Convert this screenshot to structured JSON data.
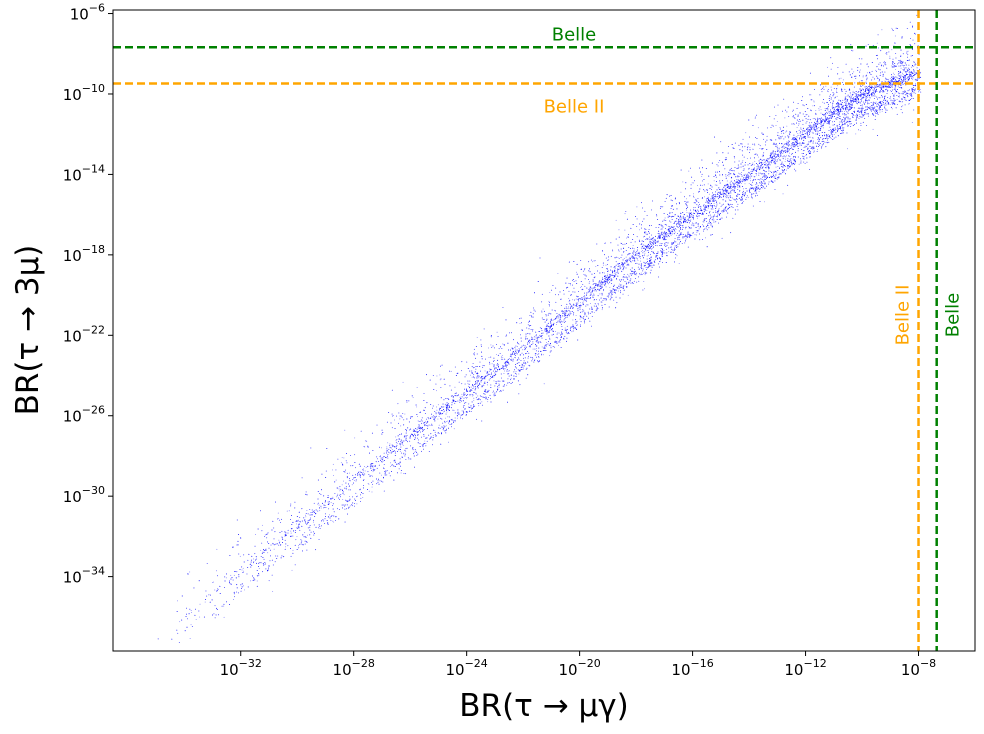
{
  "chart_data": {
    "type": "scatter",
    "xlabel": "BR(τ → μγ)",
    "ylabel": "BR(τ → 3μ)",
    "x_scale": "log",
    "y_scale": "log",
    "xlim": [
      3e-37,
      1e-06
    ],
    "ylim": [
      2e-38,
      1.5e-06
    ],
    "x_ticks": [
      {
        "value": 1e-32,
        "base": "10",
        "exp": "−32"
      },
      {
        "value": 1e-28,
        "base": "10",
        "exp": "−28"
      },
      {
        "value": 1e-24,
        "base": "10",
        "exp": "−24"
      },
      {
        "value": 1e-20,
        "base": "10",
        "exp": "−20"
      },
      {
        "value": 1e-16,
        "base": "10",
        "exp": "−16"
      },
      {
        "value": 1e-12,
        "base": "10",
        "exp": "−12"
      },
      {
        "value": 1e-08,
        "base": "10",
        "exp": "−8"
      }
    ],
    "y_ticks": [
      {
        "value": 1e-06,
        "base": "10",
        "exp": "−6"
      },
      {
        "value": 1e-10,
        "base": "10",
        "exp": "−10"
      },
      {
        "value": 1e-14,
        "base": "10",
        "exp": "−14"
      },
      {
        "value": 1e-18,
        "base": "10",
        "exp": "−18"
      },
      {
        "value": 1e-22,
        "base": "10",
        "exp": "−22"
      },
      {
        "value": 1e-26,
        "base": "10",
        "exp": "−26"
      },
      {
        "value": 1e-30,
        "base": "10",
        "exp": "−30"
      },
      {
        "value": 1e-34,
        "base": "10",
        "exp": "−34"
      }
    ],
    "grid": false,
    "series": [
      {
        "color": "#0000ff",
        "marker_size": "tiny",
        "trend_points": [
          {
            "x": 1e-34,
            "y": 1e-36
          },
          {
            "x": 1e-30,
            "y": 3e-32
          },
          {
            "x": 1e-26,
            "y": 1e-27
          },
          {
            "x": 1e-22,
            "y": 2e-23
          },
          {
            "x": 1e-18,
            "y": 1e-18
          },
          {
            "x": 1e-14,
            "y": 1e-14
          },
          {
            "x": 1e-12,
            "y": 1e-12
          },
          {
            "x": 1e-10,
            "y": 1e-10
          },
          {
            "x": 1e-08,
            "y": 1e-09
          }
        ],
        "point_count": 14000
      }
    ],
    "reference_lines": [
      {
        "orientation": "horizontal",
        "value": 2.1e-08,
        "label": "Belle",
        "color": "#008000",
        "label_position": "above"
      },
      {
        "orientation": "horizontal",
        "value": 3.3e-10,
        "label": "Belle II",
        "color": "#ffa500",
        "label_position": "below"
      },
      {
        "orientation": "vertical",
        "value": 4.4e-08,
        "label": "Belle",
        "color": "#008000",
        "label_position": "right"
      },
      {
        "orientation": "vertical",
        "value": 1e-08,
        "label": "Belle II",
        "color": "#ffa500",
        "label_position": "left"
      }
    ]
  }
}
